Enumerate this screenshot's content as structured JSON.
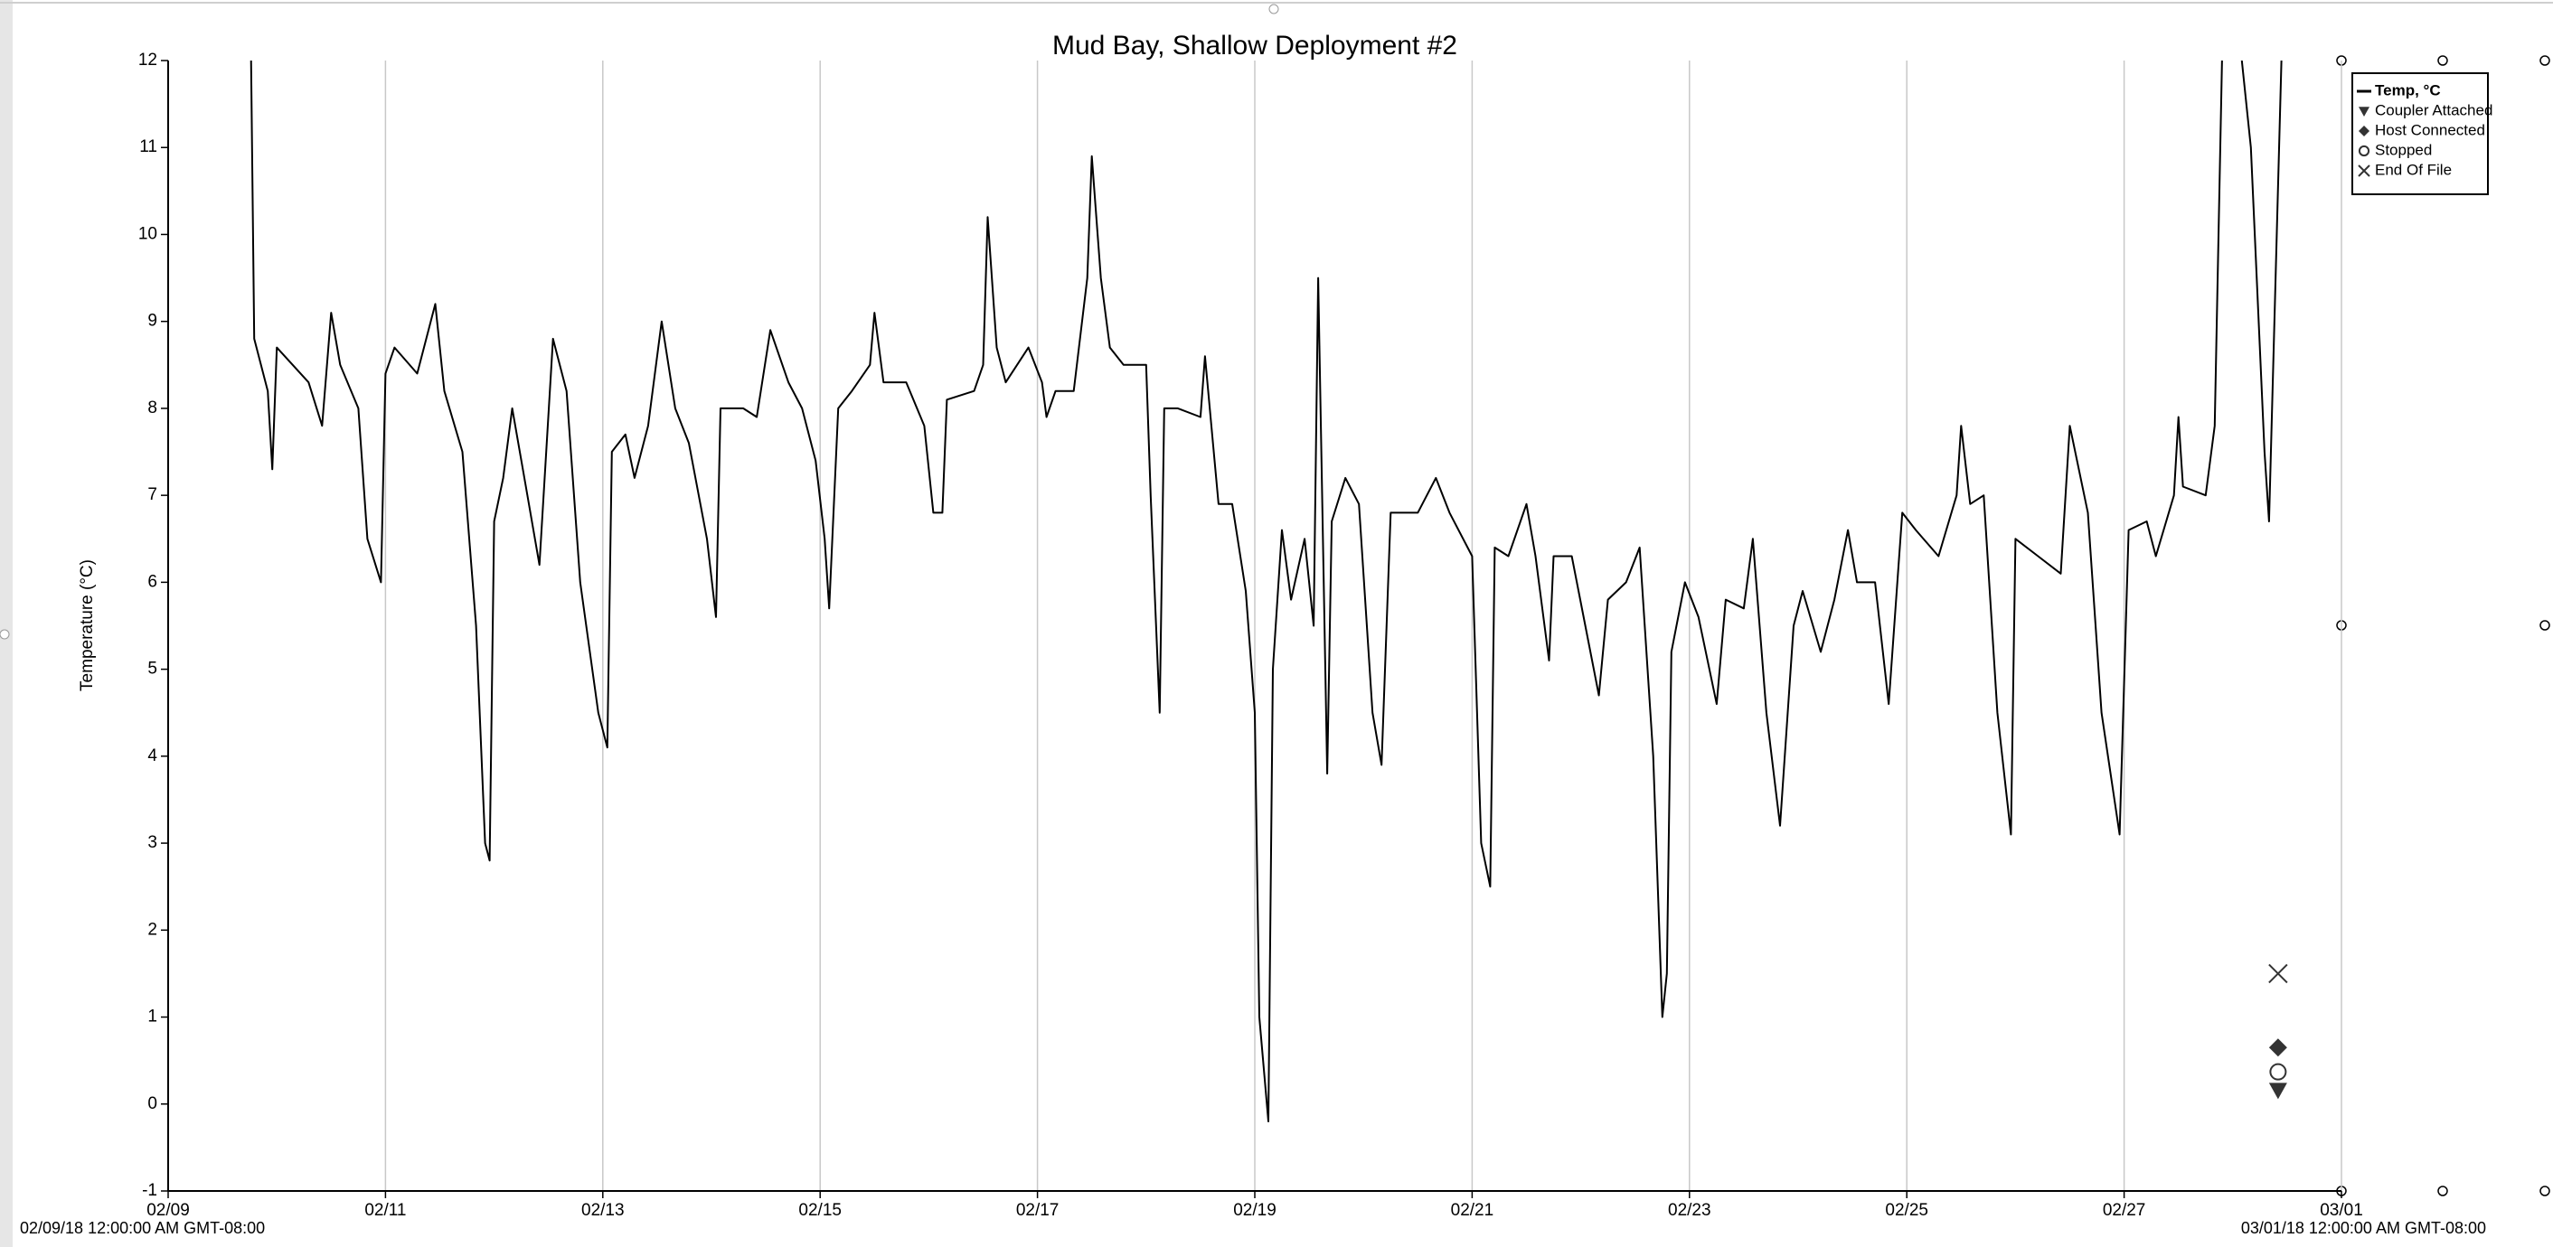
{
  "chart_data": {
    "type": "line",
    "title": "Mud Bay, Shallow Deployment #2",
    "ylabel": "Temperature (°C)",
    "x_start_label": "02/09/18 12:00:00 AM GMT-08:00",
    "x_end_label": "03/01/18 12:00:00 AM GMT-08:00",
    "xlim": [
      "2018-02-09T00:00",
      "2018-03-01T00:00"
    ],
    "xticks": [
      {
        "value": "2018-02-09T00:00",
        "label": "02/09"
      },
      {
        "value": "2018-02-11T00:00",
        "label": "02/11"
      },
      {
        "value": "2018-02-13T00:00",
        "label": "02/13"
      },
      {
        "value": "2018-02-15T00:00",
        "label": "02/15"
      },
      {
        "value": "2018-02-17T00:00",
        "label": "02/17"
      },
      {
        "value": "2018-02-19T00:00",
        "label": "02/19"
      },
      {
        "value": "2018-02-21T00:00",
        "label": "02/21"
      },
      {
        "value": "2018-02-23T00:00",
        "label": "02/23"
      },
      {
        "value": "2018-02-25T00:00",
        "label": "02/25"
      },
      {
        "value": "2018-02-27T00:00",
        "label": "02/27"
      },
      {
        "value": "2018-03-01T00:00",
        "label": "03/01"
      }
    ],
    "ylim": [
      -1,
      12
    ],
    "yticks": [
      -1,
      0,
      1,
      2,
      3,
      4,
      5,
      6,
      7,
      8,
      9,
      10,
      11,
      12
    ],
    "grid": "x",
    "legend": "right",
    "series": [
      {
        "name": "Temp, °C",
        "color": "#000000",
        "marker": "line",
        "x": [
          "2018-02-09T18:00",
          "2018-02-09T19:00",
          "2018-02-09T22:00",
          "2018-02-09T23:00",
          "2018-02-10T00:00",
          "2018-02-10T07:00",
          "2018-02-10T10:00",
          "2018-02-10T12:00",
          "2018-02-10T14:00",
          "2018-02-10T18:00",
          "2018-02-10T20:00",
          "2018-02-10T23:00",
          "2018-02-11T00:00",
          "2018-02-11T02:00",
          "2018-02-11T07:00",
          "2018-02-11T11:00",
          "2018-02-11T13:00",
          "2018-02-11T17:00",
          "2018-02-11T20:00",
          "2018-02-11T22:00",
          "2018-02-11T23:00",
          "2018-02-12T00:00",
          "2018-02-12T02:00",
          "2018-02-12T04:00",
          "2018-02-12T07:00",
          "2018-02-12T10:00",
          "2018-02-12T13:00",
          "2018-02-12T16:00",
          "2018-02-12T19:00",
          "2018-02-12T23:00",
          "2018-02-13T01:00",
          "2018-02-13T02:00",
          "2018-02-13T05:00",
          "2018-02-13T07:00",
          "2018-02-13T10:00",
          "2018-02-13T13:00",
          "2018-02-13T16:00",
          "2018-02-13T19:00",
          "2018-02-13T23:00",
          "2018-02-14T01:00",
          "2018-02-14T02:00",
          "2018-02-14T07:00",
          "2018-02-14T10:00",
          "2018-02-14T13:00",
          "2018-02-14T17:00",
          "2018-02-14T20:00",
          "2018-02-14T23:00",
          "2018-02-15T01:00",
          "2018-02-15T02:00",
          "2018-02-15T04:00",
          "2018-02-15T07:00",
          "2018-02-15T11:00",
          "2018-02-15T12:00",
          "2018-02-15T14:00",
          "2018-02-15T19:00",
          "2018-02-15T23:00",
          "2018-02-16T01:00",
          "2018-02-16T03:00",
          "2018-02-16T04:00",
          "2018-02-16T10:00",
          "2018-02-16T12:00",
          "2018-02-16T13:00",
          "2018-02-16T15:00",
          "2018-02-16T17:00",
          "2018-02-16T22:00",
          "2018-02-17T01:00",
          "2018-02-17T02:00",
          "2018-02-17T04:00",
          "2018-02-17T08:00",
          "2018-02-17T11:00",
          "2018-02-17T12:00",
          "2018-02-17T14:00",
          "2018-02-17T16:00",
          "2018-02-17T19:00",
          "2018-02-18T00:00",
          "2018-02-18T01:00",
          "2018-02-18T03:00",
          "2018-02-18T04:00",
          "2018-02-18T07:00",
          "2018-02-18T12:00",
          "2018-02-18T13:00",
          "2018-02-18T16:00",
          "2018-02-18T19:00",
          "2018-02-18T22:00",
          "2018-02-19T00:00",
          "2018-02-19T01:00",
          "2018-02-19T03:00",
          "2018-02-19T04:00",
          "2018-02-19T06:00",
          "2018-02-19T08:00",
          "2018-02-19T11:00",
          "2018-02-19T13:00",
          "2018-02-19T14:00",
          "2018-02-19T16:00",
          "2018-02-19T17:00",
          "2018-02-19T20:00",
          "2018-02-19T23:00",
          "2018-02-20T02:00",
          "2018-02-20T04:00",
          "2018-02-20T06:00",
          "2018-02-20T12:00",
          "2018-02-20T16:00",
          "2018-02-20T19:00",
          "2018-02-21T00:00",
          "2018-02-21T02:00",
          "2018-02-21T04:00",
          "2018-02-21T05:00",
          "2018-02-21T08:00",
          "2018-02-21T12:00",
          "2018-02-21T14:00",
          "2018-02-21T17:00",
          "2018-02-21T18:00",
          "2018-02-21T22:00",
          "2018-02-22T01:00",
          "2018-02-22T04:00",
          "2018-02-22T06:00",
          "2018-02-22T10:00",
          "2018-02-22T13:00",
          "2018-02-22T16:00",
          "2018-02-22T18:00",
          "2018-02-22T19:00",
          "2018-02-22T20:00",
          "2018-02-22T23:00",
          "2018-02-23T02:00",
          "2018-02-23T06:00",
          "2018-02-23T08:00",
          "2018-02-23T12:00",
          "2018-02-23T14:00",
          "2018-02-23T17:00",
          "2018-02-23T20:00",
          "2018-02-23T23:00",
          "2018-02-24T01:00",
          "2018-02-24T05:00",
          "2018-02-24T08:00",
          "2018-02-24T11:00",
          "2018-02-24T13:00",
          "2018-02-24T17:00",
          "2018-02-24T20:00",
          "2018-02-24T23:00",
          "2018-02-25T02:00",
          "2018-02-25T07:00",
          "2018-02-25T11:00",
          "2018-02-25T12:00",
          "2018-02-25T14:00",
          "2018-02-25T17:00",
          "2018-02-25T20:00",
          "2018-02-25T23:00",
          "2018-02-26T00:00",
          "2018-02-26T05:00",
          "2018-02-26T10:00",
          "2018-02-26T12:00",
          "2018-02-26T16:00",
          "2018-02-26T19:00",
          "2018-02-26T23:00",
          "2018-02-27T01:00",
          "2018-02-27T05:00",
          "2018-02-27T07:00",
          "2018-02-27T11:00",
          "2018-02-27T12:00",
          "2018-02-27T13:00",
          "2018-02-27T18:00",
          "2018-02-27T20:00",
          "2018-02-27T22:00",
          "2018-02-28T00:00",
          "2018-02-28T04:00",
          "2018-02-28T07:00",
          "2018-02-28T08:00",
          "2018-02-28T11:00"
        ],
        "values": [
          13.5,
          8.8,
          8.2,
          7.3,
          8.7,
          8.3,
          7.8,
          9.1,
          8.5,
          8.0,
          6.5,
          6.0,
          8.4,
          8.7,
          8.4,
          9.2,
          8.2,
          7.5,
          5.5,
          3.0,
          2.8,
          6.7,
          7.2,
          8.0,
          7.1,
          6.2,
          8.8,
          8.2,
          6.0,
          4.5,
          4.1,
          7.5,
          7.7,
          7.2,
          7.8,
          9.0,
          8.0,
          7.6,
          6.5,
          5.6,
          8.0,
          8.0,
          7.9,
          8.9,
          8.3,
          8.0,
          7.4,
          6.5,
          5.7,
          8.0,
          8.2,
          8.5,
          9.1,
          8.3,
          8.3,
          7.8,
          6.8,
          6.8,
          8.1,
          8.2,
          8.5,
          10.2,
          8.7,
          8.3,
          8.7,
          8.3,
          7.9,
          8.2,
          8.2,
          9.5,
          10.9,
          9.5,
          8.7,
          8.5,
          8.5,
          7.0,
          4.5,
          8.0,
          8.0,
          7.9,
          8.6,
          6.9,
          6.9,
          5.9,
          4.5,
          1.0,
          -0.2,
          5.0,
          6.6,
          5.8,
          6.5,
          5.5,
          9.5,
          3.8,
          6.7,
          7.2,
          6.9,
          4.5,
          3.9,
          6.8,
          6.8,
          7.2,
          6.8,
          6.3,
          3.0,
          2.5,
          6.4,
          6.3,
          6.9,
          6.3,
          5.1,
          6.3,
          6.3,
          5.5,
          4.7,
          5.8,
          6.0,
          6.4,
          4.0,
          1.0,
          1.5,
          5.2,
          6.0,
          5.6,
          4.6,
          5.8,
          5.7,
          6.5,
          4.5,
          3.2,
          5.5,
          5.9,
          5.2,
          5.8,
          6.6,
          6.0,
          6.0,
          4.6,
          6.8,
          6.6,
          6.3,
          7.0,
          7.8,
          6.9,
          7.0,
          4.5,
          3.1,
          6.5,
          6.3,
          6.1,
          7.8,
          6.8,
          4.5,
          3.1,
          6.6,
          6.7,
          6.3,
          7.0,
          7.9,
          7.1,
          7.0,
          7.8,
          13,
          13,
          11.0,
          7.5,
          6.7,
          12.5
        ]
      },
      {
        "name": "Coupler Attached",
        "color": "#333333",
        "marker": "triangle-down",
        "x": [
          "2018-02-28T10:00"
        ],
        "values": [
          0.16
        ]
      },
      {
        "name": "Host Connected",
        "color": "#333333",
        "marker": "diamond",
        "x": [
          "2018-02-28T10:00"
        ],
        "values": [
          0.65
        ]
      },
      {
        "name": "Stopped",
        "color": "#333333",
        "marker": "circle",
        "x": [
          "2018-02-28T10:00"
        ],
        "values": [
          0.37
        ]
      },
      {
        "name": "End Of File",
        "color": "#333333",
        "marker": "x",
        "x": [
          "2018-02-28T10:00"
        ],
        "values": [
          1.5
        ]
      }
    ]
  }
}
